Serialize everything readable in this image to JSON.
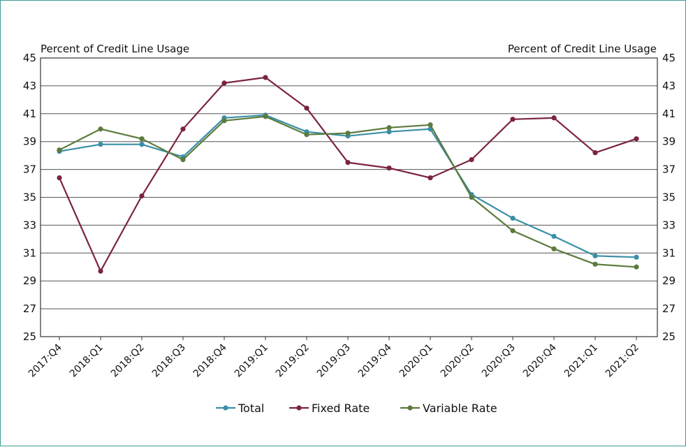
{
  "chart_data": {
    "type": "line",
    "ylabel_left": "Percent of Credit Line Usage",
    "ylabel_right": "Percent of Credit Line Usage",
    "ylim": [
      25,
      45
    ],
    "yticks": [
      25,
      27,
      29,
      31,
      33,
      35,
      37,
      39,
      41,
      43,
      45
    ],
    "categories": [
      "2017:Q4",
      "2018:Q1",
      "2018:Q2",
      "2018:Q3",
      "2018:Q4",
      "2019:Q1",
      "2019:Q2",
      "2019:Q3",
      "2019:Q4",
      "2020:Q1",
      "2020:Q2",
      "2020:Q3",
      "2020:Q4",
      "2021:Q1",
      "2021:Q2"
    ],
    "grid": true,
    "legend_position": "bottom",
    "series": [
      {
        "name": "Total",
        "color": "#3a8fa6",
        "values": [
          38.3,
          38.8,
          38.8,
          37.9,
          40.7,
          40.9,
          39.7,
          39.4,
          39.7,
          39.9,
          35.2,
          33.5,
          32.2,
          30.8,
          30.7
        ]
      },
      {
        "name": "Fixed Rate",
        "color": "#7b2440",
        "values": [
          36.4,
          29.7,
          35.1,
          39.9,
          43.2,
          43.6,
          41.4,
          37.5,
          37.1,
          36.4,
          37.7,
          40.6,
          40.7,
          38.2,
          39.2
        ]
      },
      {
        "name": "Variable Rate",
        "color": "#5c7a3e",
        "values": [
          38.4,
          39.9,
          39.2,
          37.7,
          40.5,
          40.8,
          39.5,
          39.6,
          40.0,
          40.2,
          35.0,
          32.6,
          31.3,
          30.2,
          30.0
        ]
      }
    ]
  }
}
